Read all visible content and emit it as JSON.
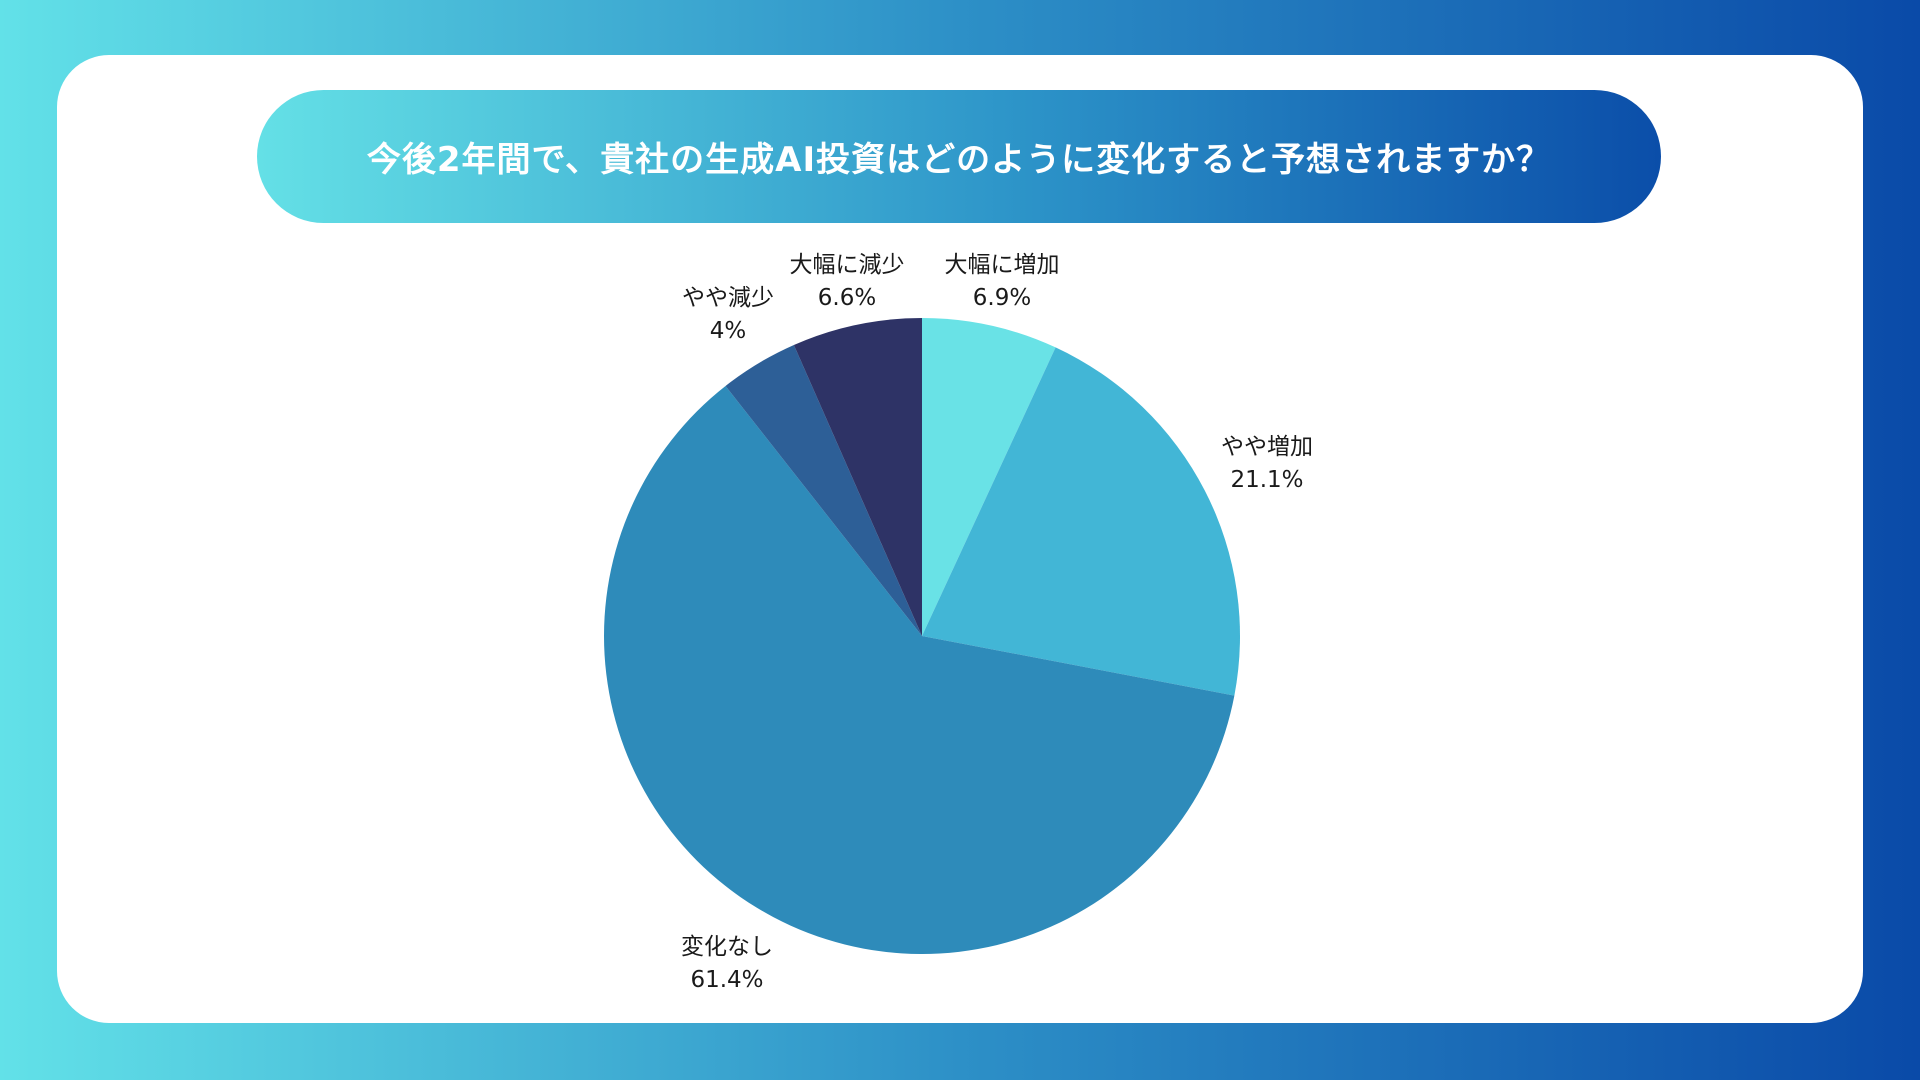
{
  "chart_data": {
    "type": "pie",
    "title": "今後2年間で、貴社の生成AI投資はどのように変化すると予想されますか？",
    "start_angle_deg": 0,
    "direction": "clockwise",
    "slices": [
      {
        "label": "大幅に増加",
        "value": 6.9,
        "value_label": "6.9%",
        "color": "#69e2e6"
      },
      {
        "label": "やや増加",
        "value": 21.1,
        "value_label": "21.1%",
        "color": "#42b6d6"
      },
      {
        "label": "変化なし",
        "value": 61.4,
        "value_label": "61.4%",
        "color": "#2e8bba"
      },
      {
        "label": "やや減少",
        "value": 4,
        "value_label": "4%",
        "color": "#2d5f97"
      },
      {
        "label": "大幅に減少",
        "value": 6.6,
        "value_label": "6.6%",
        "color": "#2e3366"
      }
    ]
  }
}
